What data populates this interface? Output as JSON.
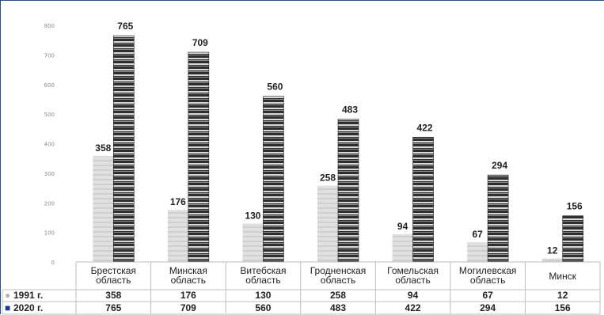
{
  "chart_data": {
    "type": "bar",
    "categories": [
      [
        "Брестская",
        "область"
      ],
      [
        "Минская",
        "область"
      ],
      [
        "Витебская",
        "область"
      ],
      [
        "Гродненская",
        "область"
      ],
      [
        "Гомельская",
        "область"
      ],
      [
        "Могилевская",
        "область"
      ],
      [
        "Минск"
      ]
    ],
    "series": [
      {
        "name": "1991 г.",
        "marker": "●",
        "values": [
          358,
          176,
          130,
          258,
          94,
          67,
          12
        ]
      },
      {
        "name": "2020 г.",
        "marker": "■",
        "values": [
          765,
          709,
          560,
          483,
          422,
          294,
          156
        ]
      }
    ],
    "yticks": [
      0,
      100,
      200,
      300,
      400,
      500,
      600,
      700,
      800
    ],
    "ylim": [
      0,
      800
    ],
    "colors": {
      "s1991": "#d4d4d4",
      "s2020": "#3c3c3c",
      "frame": "#2a4d8f"
    },
    "legend": "data-table"
  }
}
